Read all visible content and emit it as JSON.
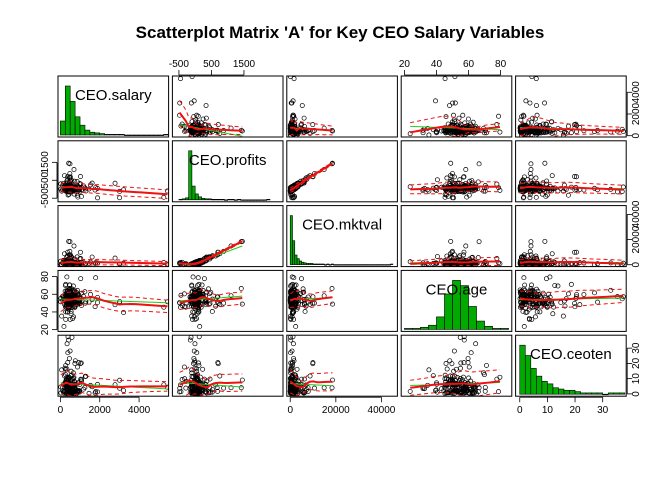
{
  "chart_data": {
    "type": "scatter",
    "title": "Scatterplot Matrix 'A' for Key CEO Salary Variables",
    "variables": [
      "CEO.salary",
      "CEO.profits",
      "CEO.mktval",
      "CEO.age",
      "CEO.ceoten"
    ],
    "axis_ticks": {
      "CEO.salary": {
        "range": [
          -120,
          5500
        ],
        "ticks": [
          0,
          2000,
          4000
        ],
        "labels": [
          "0",
          "2000",
          "4000"
        ]
      },
      "CEO.profits": {
        "range": [
          -700,
          2700
        ],
        "ticks": [
          -500,
          500,
          1500
        ],
        "labels": [
          "-500",
          "500",
          "1500"
        ]
      },
      "CEO.mktval": {
        "range": [
          -1500,
          47000
        ],
        "ticks": [
          0,
          20000,
          40000
        ],
        "labels": [
          "0",
          "20000",
          "40000"
        ]
      },
      "CEO.age": {
        "range": [
          18,
          87
        ],
        "ticks": [
          20,
          40,
          60,
          80
        ],
        "labels": [
          "20",
          "40",
          "60",
          "80"
        ]
      },
      "CEO.ceoten": {
        "range": [
          -1.5,
          38.5
        ],
        "ticks": [
          0,
          10,
          20,
          30
        ],
        "labels": [
          "0",
          "10",
          "20",
          "30"
        ]
      }
    },
    "tick_placement": {
      "bottom": [
        "CEO.salary",
        "CEO.mktval",
        "CEO.ceoten"
      ],
      "top": [
        "CEO.profits",
        "CEO.age"
      ],
      "left": [
        "CEO.profits",
        "CEO.age"
      ],
      "right": [
        "CEO.salary",
        "CEO.mktval",
        "CEO.ceoten"
      ]
    },
    "diagonal": "histogram",
    "histograms": {
      "CEO.salary": {
        "min": 0,
        "bin_width": 250,
        "counts": [
          20,
          70,
          48,
          26,
          14,
          7,
          4,
          3,
          2,
          1,
          1,
          1,
          1,
          0,
          0,
          0,
          0,
          0,
          0,
          0,
          0,
          1
        ]
      },
      "CEO.profits": {
        "min": -500,
        "bin_width": 100,
        "counts": [
          1,
          2,
          4,
          100,
          28,
          12,
          6,
          3,
          2,
          2,
          1,
          1,
          1,
          1,
          0,
          1,
          1,
          0,
          1,
          0,
          0,
          0,
          0,
          0,
          0,
          0,
          0,
          1
        ]
      },
      "CEO.mktval": {
        "min": 0,
        "bin_width": 1000,
        "counts": [
          82,
          40,
          16,
          10,
          6,
          4,
          3,
          2,
          2,
          2,
          1,
          1,
          1,
          1,
          1,
          0,
          1,
          0,
          1,
          0,
          0,
          0,
          0,
          0,
          0,
          0,
          0,
          0,
          0,
          0,
          0,
          0,
          0,
          0,
          0,
          0,
          0,
          0,
          0,
          0,
          0,
          0,
          0,
          0,
          1
        ]
      },
      "CEO.age": {
        "min": 20,
        "bin_width": 5,
        "counts": [
          1,
          1,
          2,
          4,
          12,
          34,
          47,
          42,
          22,
          8,
          3,
          1,
          1
        ]
      },
      "CEO.ceoten": {
        "min": 0,
        "bin_width": 2,
        "counts": [
          38,
          30,
          20,
          14,
          10,
          8,
          5,
          4,
          3,
          3,
          2,
          1,
          1,
          1,
          1,
          0,
          1,
          1,
          1
        ]
      }
    },
    "smoothers": [
      "linear fit (green)",
      "lowess (red)",
      "lowess spread (red dashed)"
    ],
    "colors": {
      "points": "#000000",
      "histogram": "#00aa00",
      "linear_fit": "#22cc22",
      "smooth": "#ee1111"
    }
  }
}
